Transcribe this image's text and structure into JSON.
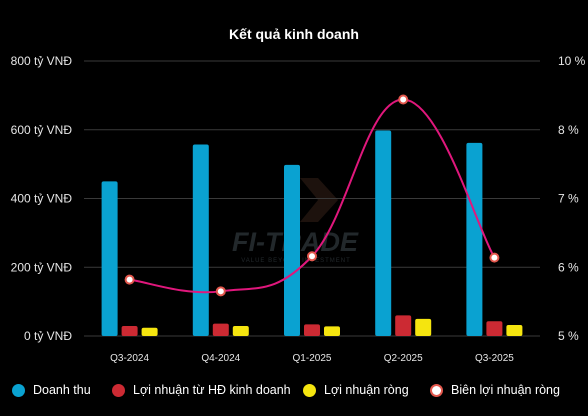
{
  "chart_data": {
    "type": "bar",
    "title": "Kết quả kinh doanh",
    "categories": [
      "Q3-2024",
      "Q4-2024",
      "Q1-2025",
      "Q2-2025",
      "Q3-2025"
    ],
    "y_left": {
      "ticks": [
        0,
        200,
        400,
        600,
        800
      ],
      "tick_labels": [
        "0 tỷ VNĐ",
        "200 tỷ VNĐ",
        "400 tỷ VNĐ",
        "600 tỷ VNĐ",
        "800 tỷ VNĐ"
      ],
      "ylim": [
        0,
        800
      ]
    },
    "y_right": {
      "ticks": [
        5,
        6,
        7,
        8,
        10
      ],
      "tick_labels": [
        "5 %",
        "6 %",
        "7 %",
        "8 %",
        "10 %"
      ],
      "ylim": [
        5,
        9
      ]
    },
    "series": [
      {
        "name": "Doanh thu",
        "type": "bar",
        "axis": "left",
        "color": "#0aa2d1",
        "values": [
          450,
          557,
          498,
          598,
          562
        ]
      },
      {
        "name": "Lợi nhuận từ HĐ kinh doanh",
        "type": "bar",
        "axis": "left",
        "color": "#cc2a33",
        "values": [
          29,
          36,
          34,
          60,
          43
        ]
      },
      {
        "name": "Lợi nhuận ròng",
        "type": "bar",
        "axis": "left",
        "color": "#f5e50f",
        "values": [
          24,
          29,
          28,
          50,
          32
        ]
      },
      {
        "name": "Biên lợi nhuận ròng",
        "type": "line",
        "axis": "right",
        "color": "#e0177c",
        "values": [
          5.82,
          5.65,
          6.16,
          8.44,
          6.14
        ]
      }
    ],
    "grid": true,
    "legend": "bottom"
  },
  "watermark": {
    "text": "FI-TRADE",
    "tagline": "VALUE BEYOND INVESTMENT"
  }
}
